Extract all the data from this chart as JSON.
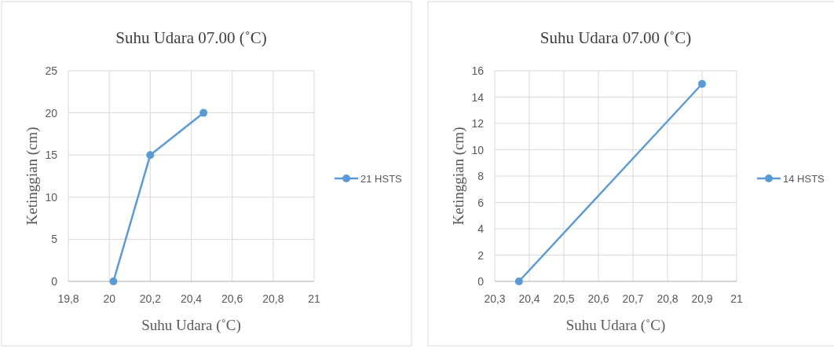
{
  "chart_data": [
    {
      "type": "line",
      "title": "Suhu Udara 07.00 (˚C)",
      "xlabel": "Suhu Udara (˚C)",
      "ylabel": "Ketinggian (cm)",
      "x": [
        20.02,
        20.2,
        20.46
      ],
      "series": [
        {
          "name": "21 HSTS",
          "color": "#5b9bd5",
          "values": [
            0,
            15,
            20
          ]
        }
      ],
      "xlim": [
        19.8,
        21
      ],
      "ylim": [
        0,
        25
      ],
      "xticks": [
        {
          "value": 19.8,
          "label": "19,8"
        },
        {
          "value": 20,
          "label": "20"
        },
        {
          "value": 20.2,
          "label": "20,2"
        },
        {
          "value": 20.4,
          "label": "20,4"
        },
        {
          "value": 20.6,
          "label": "20,6"
        },
        {
          "value": 20.8,
          "label": "20,8"
        },
        {
          "value": 21,
          "label": "21"
        }
      ],
      "yticks": [
        0,
        5,
        10,
        15,
        20,
        25
      ],
      "grid": true,
      "legend": "right",
      "marker": "circle"
    },
    {
      "type": "line",
      "title": "Suhu Udara 07.00 (˚C)",
      "xlabel": "Suhu Udara (˚C)",
      "ylabel": "Ketinggian (cm)",
      "x": [
        20.37,
        20.9
      ],
      "series": [
        {
          "name": "14 HSTS",
          "color": "#5b9bd5",
          "values": [
            0,
            15
          ]
        }
      ],
      "xlim": [
        20.3,
        21
      ],
      "ylim": [
        0,
        16
      ],
      "xticks": [
        {
          "value": 20.3,
          "label": "20,3"
        },
        {
          "value": 20.4,
          "label": "20,4"
        },
        {
          "value": 20.5,
          "label": "20,5"
        },
        {
          "value": 20.6,
          "label": "20,6"
        },
        {
          "value": 20.7,
          "label": "20,7"
        },
        {
          "value": 20.8,
          "label": "20,8"
        },
        {
          "value": 20.9,
          "label": "20,9"
        },
        21
      ],
      "yticks": [
        0,
        2,
        4,
        6,
        8,
        10,
        12,
        14,
        16
      ],
      "grid": true,
      "legend": "right",
      "marker": "circle"
    }
  ]
}
